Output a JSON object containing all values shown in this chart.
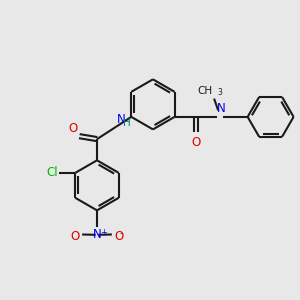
{
  "bg_color": "#e8e8e8",
  "bond_color": "#1a1a1a",
  "atom_colors": {
    "N": "#0000ee",
    "O": "#dd0000",
    "Cl": "#00bb00",
    "H": "#007777",
    "C": "#1a1a1a"
  },
  "lw": 1.5,
  "fs": 8.5,
  "r_big": 0.72,
  "r_small": 0.68
}
